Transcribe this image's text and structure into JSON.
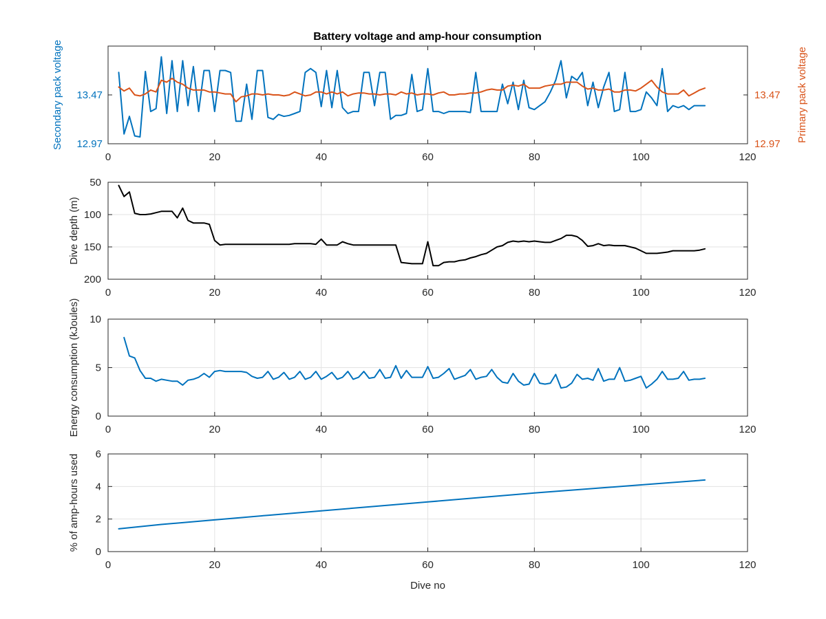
{
  "figure": {
    "title": "Battery voltage and amp-hour consumption",
    "colors": {
      "blue": "#0072BD",
      "orange": "#D95319",
      "black": "#000000"
    }
  },
  "chart_data": [
    {
      "type": "line",
      "title": "Battery voltage and amp-hour consumption",
      "xlabel": "",
      "ylabel_left": "Secondary pack voltage",
      "ylabel_right": "Primary pack voltage",
      "xlim": [
        0,
        120
      ],
      "xticks": [
        0,
        20,
        40,
        60,
        80,
        100,
        120
      ],
      "ylim": [
        12.97,
        13.97
      ],
      "yticks_left": [
        "12.97",
        "13.47"
      ],
      "yticks_right": [
        "12.97",
        "13.47"
      ],
      "grid": false,
      "series": [
        {
          "axis": "left",
          "color": "#0072BD",
          "x": [
            2,
            3,
            4,
            5,
            6,
            7,
            8,
            9,
            10,
            11,
            12,
            13,
            14,
            15,
            16,
            17,
            18,
            19,
            20,
            21,
            22,
            23,
            24,
            25,
            26,
            27,
            28,
            29,
            30,
            31,
            32,
            33,
            34,
            35,
            36,
            37,
            38,
            39,
            40,
            41,
            42,
            43,
            44,
            45,
            46,
            47,
            48,
            49,
            50,
            51,
            52,
            53,
            54,
            55,
            56,
            57,
            58,
            59,
            60,
            61,
            62,
            63,
            64,
            65,
            66,
            67,
            68,
            69,
            70,
            71,
            72,
            73,
            74,
            75,
            76,
            77,
            78,
            79,
            80,
            81,
            82,
            83,
            84,
            85,
            86,
            87,
            88,
            89,
            90,
            91,
            92,
            93,
            94,
            95,
            96,
            97,
            98,
            99,
            100,
            101,
            102,
            103,
            104,
            105,
            106,
            107,
            108,
            109,
            110,
            111,
            112
          ],
          "y": [
            13.7,
            13.07,
            13.25,
            13.05,
            13.04,
            13.71,
            13.3,
            13.33,
            13.86,
            13.28,
            13.82,
            13.3,
            13.82,
            13.36,
            13.76,
            13.3,
            13.72,
            13.72,
            13.3,
            13.72,
            13.72,
            13.7,
            13.2,
            13.2,
            13.58,
            13.22,
            13.72,
            13.72,
            13.24,
            13.22,
            13.27,
            13.25,
            13.26,
            13.28,
            13.3,
            13.7,
            13.74,
            13.7,
            13.35,
            13.72,
            13.34,
            13.72,
            13.34,
            13.28,
            13.3,
            13.3,
            13.7,
            13.7,
            13.36,
            13.7,
            13.7,
            13.22,
            13.26,
            13.26,
            13.28,
            13.68,
            13.3,
            13.32,
            13.74,
            13.3,
            13.3,
            13.28,
            13.3,
            13.3,
            13.3,
            13.3,
            13.29,
            13.7,
            13.3,
            13.3,
            13.3,
            13.3,
            13.58,
            13.38,
            13.6,
            13.32,
            13.62,
            13.34,
            13.32,
            13.36,
            13.4,
            13.5,
            13.62,
            13.82,
            13.44,
            13.66,
            13.62,
            13.7,
            13.36,
            13.6,
            13.34,
            13.55,
            13.7,
            13.3,
            13.32,
            13.7,
            13.3,
            13.3,
            13.32,
            13.5,
            13.44,
            13.36,
            13.74,
            13.3,
            13.36,
            13.34,
            13.36,
            13.32,
            13.36,
            13.36,
            13.36
          ]
        },
        {
          "axis": "right",
          "color": "#D95319",
          "x": [
            2,
            3,
            4,
            5,
            6,
            7,
            8,
            9,
            10,
            11,
            12,
            13,
            14,
            15,
            16,
            17,
            18,
            19,
            20,
            21,
            22,
            23,
            24,
            25,
            26,
            27,
            28,
            29,
            30,
            31,
            32,
            33,
            34,
            35,
            36,
            37,
            38,
            39,
            40,
            41,
            42,
            43,
            44,
            45,
            46,
            47,
            48,
            49,
            50,
            51,
            52,
            53,
            54,
            55,
            56,
            57,
            58,
            59,
            60,
            61,
            62,
            63,
            64,
            65,
            66,
            67,
            68,
            69,
            70,
            71,
            72,
            73,
            74,
            75,
            76,
            77,
            78,
            79,
            80,
            81,
            82,
            83,
            84,
            85,
            86,
            87,
            88,
            89,
            90,
            91,
            92,
            93,
            94,
            95,
            96,
            97,
            98,
            99,
            100,
            101,
            102,
            103,
            104,
            105,
            106,
            107,
            108,
            109,
            110,
            111,
            112
          ],
          "y": [
            13.55,
            13.51,
            13.54,
            13.47,
            13.46,
            13.48,
            13.52,
            13.5,
            13.62,
            13.6,
            13.64,
            13.6,
            13.58,
            13.54,
            13.52,
            13.52,
            13.52,
            13.5,
            13.5,
            13.49,
            13.48,
            13.48,
            13.4,
            13.45,
            13.46,
            13.48,
            13.48,
            13.47,
            13.48,
            13.47,
            13.47,
            13.46,
            13.47,
            13.5,
            13.48,
            13.46,
            13.47,
            13.5,
            13.5,
            13.48,
            13.5,
            13.48,
            13.5,
            13.46,
            13.48,
            13.49,
            13.49,
            13.48,
            13.48,
            13.47,
            13.48,
            13.48,
            13.47,
            13.5,
            13.48,
            13.49,
            13.47,
            13.48,
            13.48,
            13.47,
            13.49,
            13.5,
            13.47,
            13.47,
            13.48,
            13.48,
            13.49,
            13.49,
            13.5,
            13.52,
            13.53,
            13.52,
            13.52,
            13.56,
            13.57,
            13.56,
            13.58,
            13.54,
            13.54,
            13.54,
            13.56,
            13.57,
            13.58,
            13.58,
            13.6,
            13.6,
            13.6,
            13.56,
            13.53,
            13.54,
            13.52,
            13.52,
            13.53,
            13.5,
            13.5,
            13.52,
            13.52,
            13.51,
            13.54,
            13.58,
            13.62,
            13.55,
            13.5,
            13.48,
            13.48,
            13.48,
            13.52,
            13.46,
            13.49,
            13.52,
            13.54
          ]
        }
      ]
    },
    {
      "type": "line",
      "title": "",
      "xlabel": "",
      "ylabel": "Dive depth (m)",
      "xlim": [
        0,
        120
      ],
      "xticks": [
        0,
        20,
        40,
        60,
        80,
        100,
        120
      ],
      "ylim": [
        50,
        200
      ],
      "y_reversed": true,
      "yticks": [
        50,
        100,
        150,
        200
      ],
      "grid": true,
      "series": [
        {
          "color": "#000000",
          "x": [
            2,
            3,
            4,
            5,
            6,
            7,
            8,
            9,
            10,
            11,
            12,
            13,
            14,
            15,
            16,
            17,
            18,
            19,
            20,
            21,
            22,
            23,
            24,
            25,
            26,
            27,
            28,
            29,
            30,
            31,
            32,
            33,
            34,
            35,
            36,
            37,
            38,
            39,
            40,
            41,
            42,
            43,
            44,
            45,
            46,
            47,
            48,
            49,
            50,
            51,
            52,
            53,
            54,
            55,
            56,
            57,
            58,
            59,
            60,
            61,
            62,
            63,
            64,
            65,
            66,
            67,
            68,
            69,
            70,
            71,
            72,
            73,
            74,
            75,
            76,
            77,
            78,
            79,
            80,
            81,
            82,
            83,
            84,
            85,
            86,
            87,
            88,
            89,
            90,
            91,
            92,
            93,
            94,
            95,
            96,
            97,
            98,
            99,
            100,
            101,
            102,
            103,
            104,
            105,
            106,
            107,
            108,
            109,
            110,
            111,
            112
          ],
          "y": [
            55,
            72,
            65,
            98,
            100,
            100,
            99,
            97,
            95,
            95,
            95,
            105,
            90,
            109,
            113,
            113,
            113,
            115,
            140,
            147,
            146,
            146,
            146,
            146,
            146,
            146,
            146,
            146,
            146,
            146,
            146,
            146,
            146,
            145,
            145,
            145,
            145,
            146,
            138,
            147,
            147,
            147,
            142,
            145,
            147,
            147,
            147,
            147,
            147,
            147,
            147,
            147,
            147,
            174,
            175,
            176,
            176,
            176,
            142,
            179,
            179,
            174,
            173,
            173,
            171,
            170,
            167,
            165,
            162,
            160,
            155,
            150,
            148,
            143,
            141,
            142,
            141,
            142,
            141,
            142,
            143,
            143,
            140,
            137,
            132,
            132,
            134,
            140,
            149,
            148,
            145,
            148,
            147,
            148,
            148,
            148,
            150,
            152,
            156,
            160,
            160,
            160,
            159,
            158,
            156,
            156,
            156,
            156,
            156,
            155,
            153
          ]
        }
      ]
    },
    {
      "type": "line",
      "title": "",
      "xlabel": "",
      "ylabel": "Energy consumption (kJoules)",
      "xlim": [
        0,
        120
      ],
      "xticks": [
        0,
        20,
        40,
        60,
        80,
        100,
        120
      ],
      "ylim": [
        0,
        10
      ],
      "yticks": [
        0,
        5,
        10
      ],
      "grid": true,
      "series": [
        {
          "color": "#0072BD",
          "x": [
            3,
            4,
            5,
            6,
            7,
            8,
            9,
            10,
            11,
            12,
            13,
            14,
            15,
            16,
            17,
            18,
            19,
            20,
            21,
            22,
            23,
            24,
            25,
            26,
            27,
            28,
            29,
            30,
            31,
            32,
            33,
            34,
            35,
            36,
            37,
            38,
            39,
            40,
            41,
            42,
            43,
            44,
            45,
            46,
            47,
            48,
            49,
            50,
            51,
            52,
            53,
            54,
            55,
            56,
            57,
            58,
            59,
            60,
            61,
            62,
            63,
            64,
            65,
            66,
            67,
            68,
            69,
            70,
            71,
            72,
            73,
            74,
            75,
            76,
            77,
            78,
            79,
            80,
            81,
            82,
            83,
            84,
            85,
            86,
            87,
            88,
            89,
            90,
            91,
            92,
            93,
            94,
            95,
            96,
            97,
            98,
            99,
            100,
            101,
            102,
            103,
            104,
            105,
            106,
            107,
            108,
            109,
            110,
            111,
            112
          ],
          "y": [
            8.1,
            6.2,
            6.0,
            4.7,
            3.9,
            3.9,
            3.6,
            3.8,
            3.7,
            3.6,
            3.6,
            3.2,
            3.7,
            3.8,
            4.0,
            4.4,
            4.0,
            4.6,
            4.7,
            4.6,
            4.6,
            4.6,
            4.6,
            4.5,
            4.1,
            3.9,
            4.0,
            4.6,
            3.8,
            4.0,
            4.5,
            3.8,
            4.0,
            4.6,
            3.8,
            4.0,
            4.6,
            3.8,
            4.1,
            4.5,
            3.8,
            4.0,
            4.6,
            3.8,
            4.0,
            4.6,
            3.9,
            4.0,
            4.8,
            3.9,
            4.0,
            5.2,
            3.9,
            4.7,
            4.0,
            4.0,
            4.0,
            5.1,
            3.9,
            4.0,
            4.4,
            4.9,
            3.8,
            4.0,
            4.2,
            4.8,
            3.8,
            4.0,
            4.1,
            4.8,
            4.0,
            3.5,
            3.4,
            4.4,
            3.6,
            3.2,
            3.3,
            4.4,
            3.4,
            3.3,
            3.4,
            4.3,
            2.9,
            3.0,
            3.4,
            4.3,
            3.8,
            3.9,
            3.7,
            4.9,
            3.6,
            3.8,
            3.8,
            5.0,
            3.6,
            3.7,
            3.9,
            4.1,
            2.9,
            3.3,
            3.8,
            4.6,
            3.8,
            3.8,
            3.9,
            4.6,
            3.7,
            3.8,
            3.8,
            3.9
          ]
        }
      ]
    },
    {
      "type": "line",
      "title": "",
      "xlabel": "Dive no",
      "ylabel": "% of amp-hours used",
      "xlim": [
        0,
        120
      ],
      "xticks": [
        0,
        20,
        40,
        60,
        80,
        100,
        120
      ],
      "ylim": [
        0,
        6
      ],
      "yticks": [
        0,
        2,
        4,
        6
      ],
      "grid": true,
      "series": [
        {
          "color": "#0072BD",
          "x": [
            2,
            10,
            20,
            30,
            40,
            50,
            60,
            70,
            80,
            90,
            100,
            112
          ],
          "y": [
            1.4,
            1.67,
            1.95,
            2.23,
            2.5,
            2.78,
            3.05,
            3.33,
            3.6,
            3.85,
            4.1,
            4.4
          ]
        }
      ]
    }
  ]
}
